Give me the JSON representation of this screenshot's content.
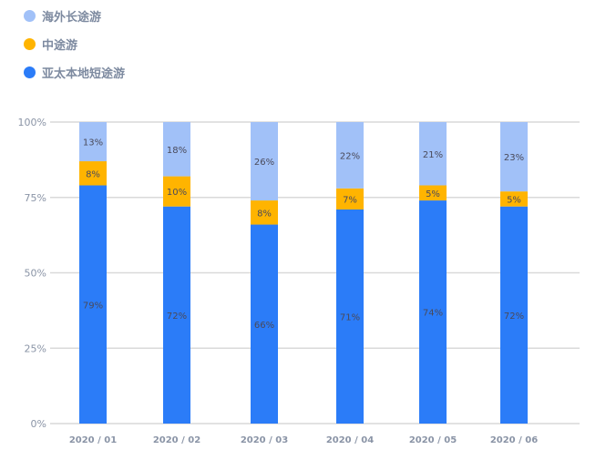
{
  "chart_data": {
    "type": "bar",
    "stacked": true,
    "title": "",
    "xlabel": "",
    "ylabel": "",
    "ylim": [
      0,
      100
    ],
    "yticks": [
      "0%",
      "25%",
      "50%",
      "75%",
      "100%"
    ],
    "grid": true,
    "legend_position": "top-left",
    "categories": [
      "2020 / 01",
      "2020 / 02",
      "2020 / 03",
      "2020 / 04",
      "2020 / 05",
      "2020 / 06"
    ],
    "series": [
      {
        "name": "亚太本地短途游",
        "color": "#2b7cf8",
        "values": [
          79,
          72,
          66,
          71,
          74,
          72
        ]
      },
      {
        "name": "中途游",
        "color": "#ffb400",
        "values": [
          8,
          10,
          8,
          7,
          5,
          5
        ]
      },
      {
        "name": "海外长途游",
        "color": "#a1c1f8",
        "values": [
          13,
          18,
          26,
          22,
          21,
          23
        ]
      }
    ],
    "legend_order": [
      2,
      1,
      0
    ]
  }
}
